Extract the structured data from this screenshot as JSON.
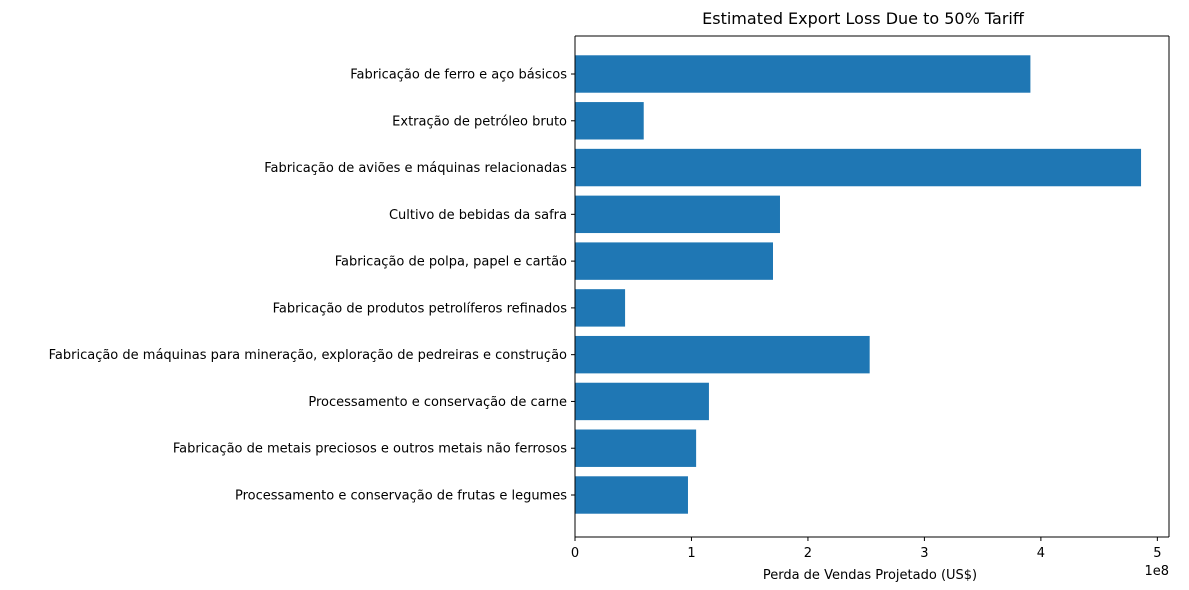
{
  "chart_data": {
    "type": "bar",
    "orientation": "horizontal",
    "title": "Estimated Export Loss Due to 50% Tariff",
    "xlabel": "Perda de Vendas Projetado (US$)",
    "ylabel": "",
    "x_offset_label": "1e8",
    "x_ticks": [
      0,
      1,
      2,
      3,
      4,
      5
    ],
    "x_scale": 100000000,
    "xlim": [
      0,
      510000000
    ],
    "color": "#1f77b4",
    "grid": false,
    "categories": [
      "Fabricação de ferro e aço básicos",
      "Extração de petróleo bruto",
      "Fabricação de aviões e máquinas relacionadas",
      "Cultivo de bebidas da safra",
      "Fabricação de polpa, papel e cartão",
      "Fabricação de produtos petrolíferos refinados",
      "Fabricação de máquinas para mineração, exploração de pedreiras e construção",
      "Processamento e conservação de carne",
      "Fabricação de metais preciosos e outros metais não ferrosos",
      "Processamento e conservação de frutas e legumes"
    ],
    "values": [
      391000000,
      59000000,
      486000000,
      176000000,
      170000000,
      43000000,
      253000000,
      115000000,
      104000000,
      97000000
    ]
  }
}
